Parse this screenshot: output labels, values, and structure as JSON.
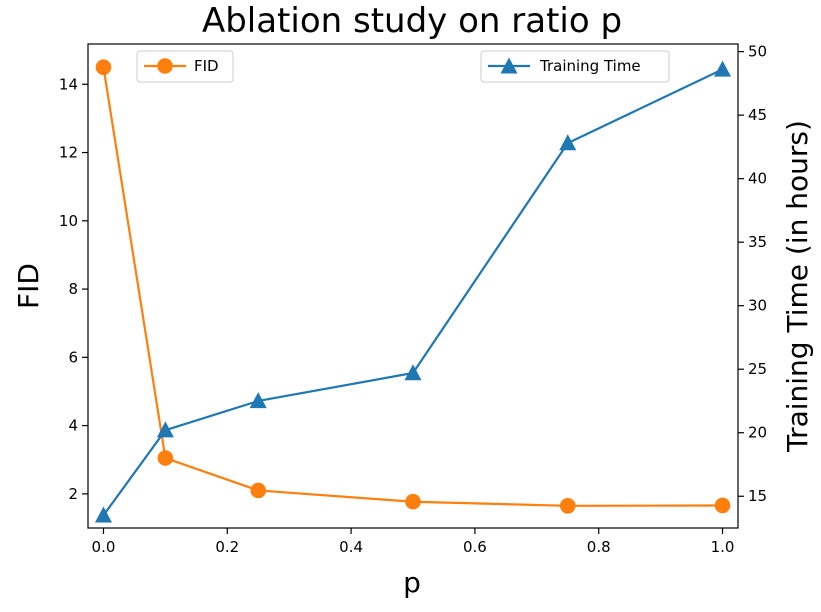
{
  "chart_data": {
    "type": "line",
    "title": "Ablation study on ratio p",
    "xlabel": "p",
    "ylabel_left": "FID",
    "ylabel_right": "Training Time (in hours)",
    "x": [
      0.0,
      0.1,
      0.25,
      0.5,
      0.75,
      1.0
    ],
    "xlim": [
      -0.025,
      1.025
    ],
    "ylim_left": [
      1.0,
      15.18
    ],
    "ylim_right": [
      12.5,
      50.6
    ],
    "xticks": [
      0.0,
      0.2,
      0.4,
      0.6,
      0.8,
      1.0
    ],
    "xtick_labels": [
      "0.0",
      "0.2",
      "0.4",
      "0.6",
      "0.8",
      "1.0"
    ],
    "yticks_left": [
      2,
      4,
      6,
      8,
      10,
      12,
      14
    ],
    "ytick_labels_left": [
      "2",
      "4",
      "6",
      "8",
      "10",
      "12",
      "14"
    ],
    "yticks_right": [
      15,
      20,
      25,
      30,
      35,
      40,
      45,
      50
    ],
    "ytick_labels_right": [
      "15",
      "20",
      "25",
      "30",
      "35",
      "40",
      "45",
      "50"
    ],
    "grid": false,
    "series": [
      {
        "name": "FID",
        "axis": "left",
        "marker": "circle",
        "color": "#ff7f0e",
        "values": [
          14.5,
          3.05,
          2.1,
          1.77,
          1.65,
          1.66
        ],
        "legend_position": "upper-left"
      },
      {
        "name": "Training Time",
        "axis": "right",
        "marker": "triangle",
        "color": "#1f77b4",
        "values": [
          13.5,
          20.2,
          22.5,
          24.7,
          42.8,
          48.6
        ],
        "legend_position": "upper-right"
      }
    ]
  }
}
